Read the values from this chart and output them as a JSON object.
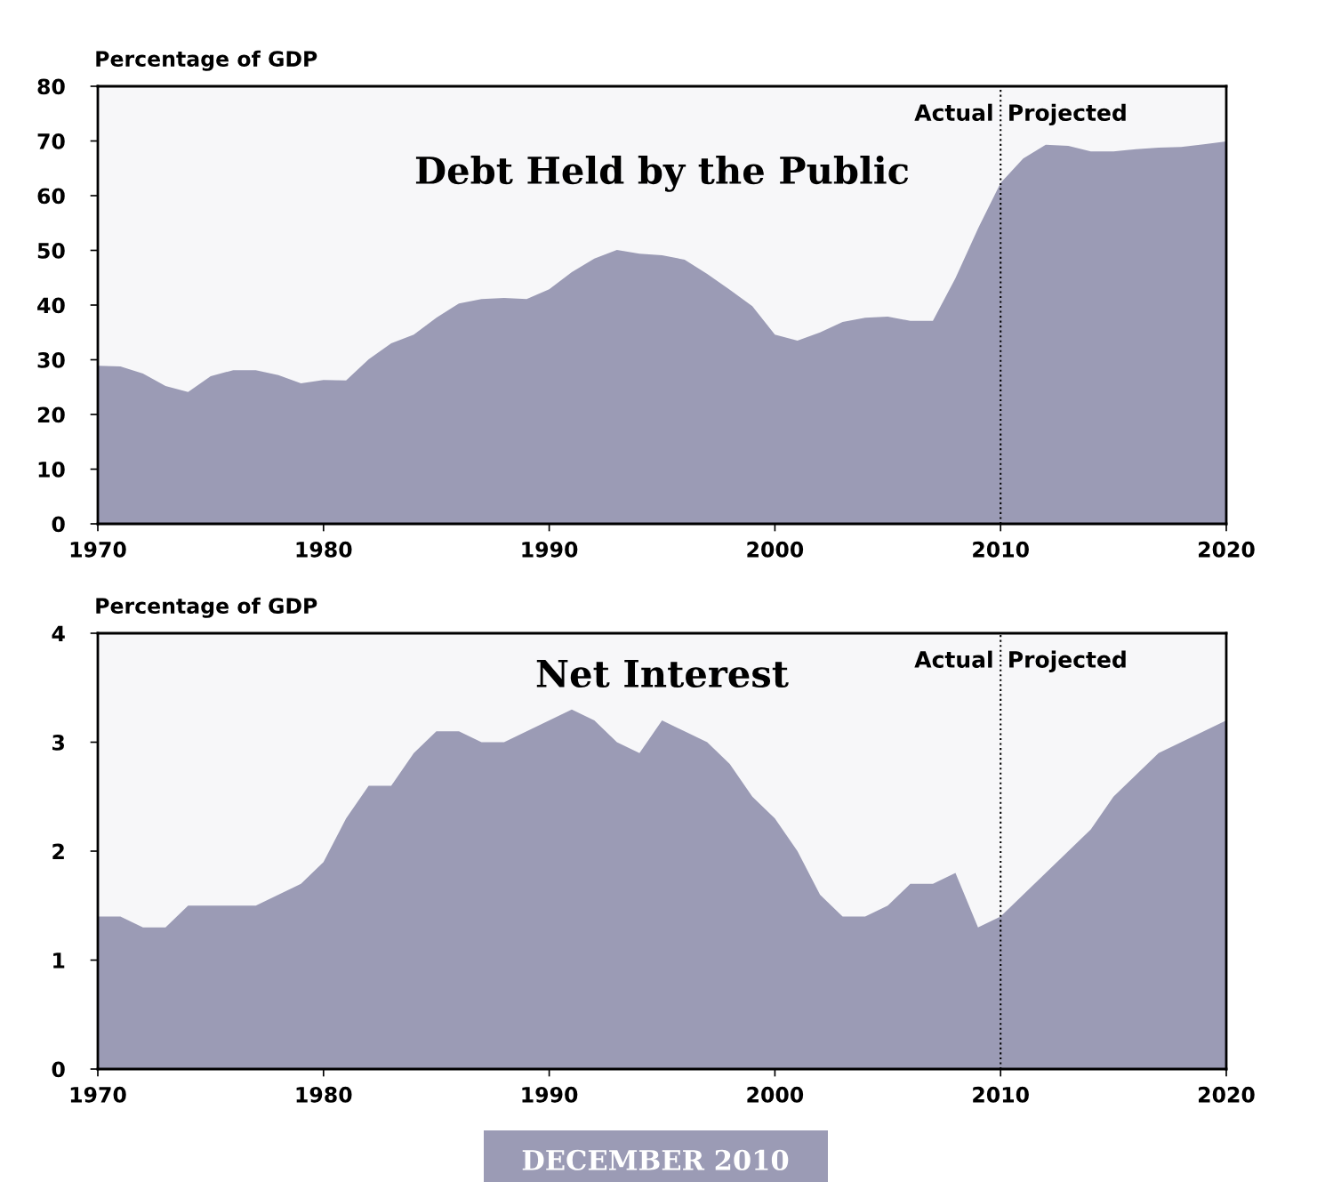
{
  "chart_data": [
    {
      "type": "area",
      "title": "Debt Held by the Public",
      "ylabel": "Percentage of GDP",
      "color": "#9b9bb5",
      "x": [
        1970,
        1971,
        1972,
        1973,
        1974,
        1975,
        1976,
        1977,
        1978,
        1979,
        1980,
        1981,
        1982,
        1983,
        1984,
        1985,
        1986,
        1987,
        1988,
        1989,
        1990,
        1991,
        1992,
        1993,
        1994,
        1995,
        1996,
        1997,
        1998,
        1999,
        2000,
        2001,
        2002,
        2003,
        2004,
        2005,
        2006,
        2007,
        2008,
        2009,
        2010,
        2011,
        2012,
        2013,
        2014,
        2015,
        2016,
        2017,
        2018,
        2019,
        2020
      ],
      "values": [
        28.9,
        28.8,
        27.5,
        25.2,
        24.1,
        27.0,
        28.1,
        28.1,
        27.2,
        25.7,
        26.3,
        26.2,
        30.1,
        33.0,
        34.6,
        37.7,
        40.3,
        41.1,
        41.3,
        41.1,
        42.9,
        46.0,
        48.5,
        50.1,
        49.4,
        49.1,
        48.3,
        45.7,
        42.8,
        39.8,
        34.6,
        33.5,
        35.0,
        36.9,
        37.7,
        37.9,
        37.1,
        37.1,
        44.9,
        54.0,
        62.3,
        66.8,
        69.3,
        69.1,
        68.1,
        68.1,
        68.5,
        68.8,
        68.9,
        69.4,
        69.9
      ],
      "xlim": [
        1970,
        2020
      ],
      "ylim": [
        0,
        80
      ],
      "xticks": [
        1970,
        1980,
        1990,
        2000,
        2010,
        2020
      ],
      "yticks": [
        0,
        10,
        20,
        30,
        40,
        50,
        60,
        70,
        80
      ],
      "grid": false,
      "ref_lines": [
        {
          "axis": "x",
          "value": 2010,
          "line_style": "dotted",
          "color": "#000000"
        }
      ],
      "annotations": [
        "Actual",
        "Projected"
      ]
    },
    {
      "type": "area",
      "title": "Net Interest",
      "ylabel": "Percentage of GDP",
      "color": "#9b9bb5",
      "x": [
        1970,
        1971,
        1972,
        1973,
        1974,
        1975,
        1976,
        1977,
        1978,
        1979,
        1980,
        1981,
        1982,
        1983,
        1984,
        1985,
        1986,
        1987,
        1988,
        1989,
        1990,
        1991,
        1992,
        1993,
        1994,
        1995,
        1996,
        1997,
        1998,
        1999,
        2000,
        2001,
        2002,
        2003,
        2004,
        2005,
        2006,
        2007,
        2008,
        2009,
        2010,
        2011,
        2012,
        2013,
        2014,
        2015,
        2016,
        2017,
        2018,
        2019,
        2020
      ],
      "values": [
        1.4,
        1.4,
        1.3,
        1.3,
        1.5,
        1.5,
        1.5,
        1.5,
        1.6,
        1.7,
        1.9,
        2.3,
        2.6,
        2.6,
        2.9,
        3.1,
        3.1,
        3.0,
        3.0,
        3.1,
        3.2,
        3.3,
        3.2,
        3.0,
        2.9,
        3.2,
        3.1,
        3.0,
        2.8,
        2.5,
        2.3,
        2.0,
        1.6,
        1.4,
        1.4,
        1.5,
        1.7,
        1.7,
        1.8,
        1.3,
        1.4,
        1.6,
        1.8,
        2.0,
        2.2,
        2.5,
        2.7,
        2.9,
        3.0,
        3.1,
        3.2
      ],
      "xlim": [
        1970,
        2020
      ],
      "ylim": [
        0,
        4
      ],
      "xticks": [
        1970,
        1980,
        1990,
        2000,
        2010,
        2020
      ],
      "yticks": [
        0,
        1,
        2,
        3,
        4
      ],
      "grid": false,
      "ref_lines": [
        {
          "axis": "x",
          "value": 2010,
          "line_style": "dotted",
          "color": "#000000"
        }
      ],
      "annotations": [
        "Actual",
        "Projected",
        "DECEMBER 2010"
      ]
    }
  ]
}
